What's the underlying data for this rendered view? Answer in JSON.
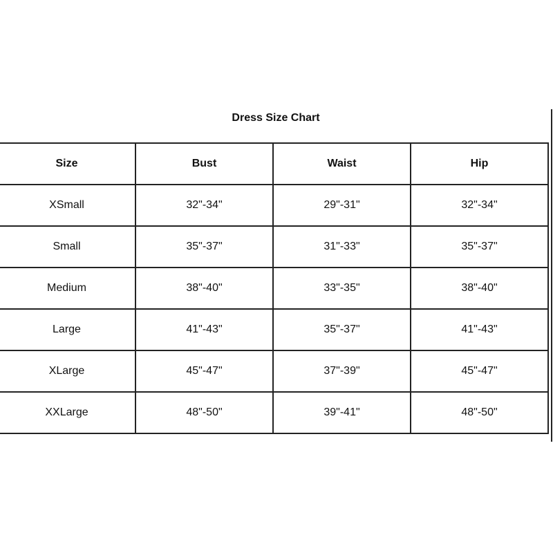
{
  "title": "Dress Size Chart",
  "headers": [
    "Size",
    "Bust",
    "Waist",
    "Hip"
  ],
  "rows": [
    [
      "XSmall",
      "32\"-34\"",
      "29\"-31\"",
      "32\"-34\""
    ],
    [
      "Small",
      "35\"-37\"",
      "31\"-33\"",
      "35\"-37\""
    ],
    [
      "Medium",
      "38\"-40\"",
      "33\"-35\"",
      "38\"-40\""
    ],
    [
      "Large",
      "41\"-43\"",
      "35\"-37\"",
      "41\"-43\""
    ],
    [
      "XLarge",
      "45\"-47\"",
      "37\"-39\"",
      "45\"-47\""
    ],
    [
      "XXLarge",
      "48\"-50\"",
      "39\"-41\"",
      "48\"-50\""
    ]
  ]
}
